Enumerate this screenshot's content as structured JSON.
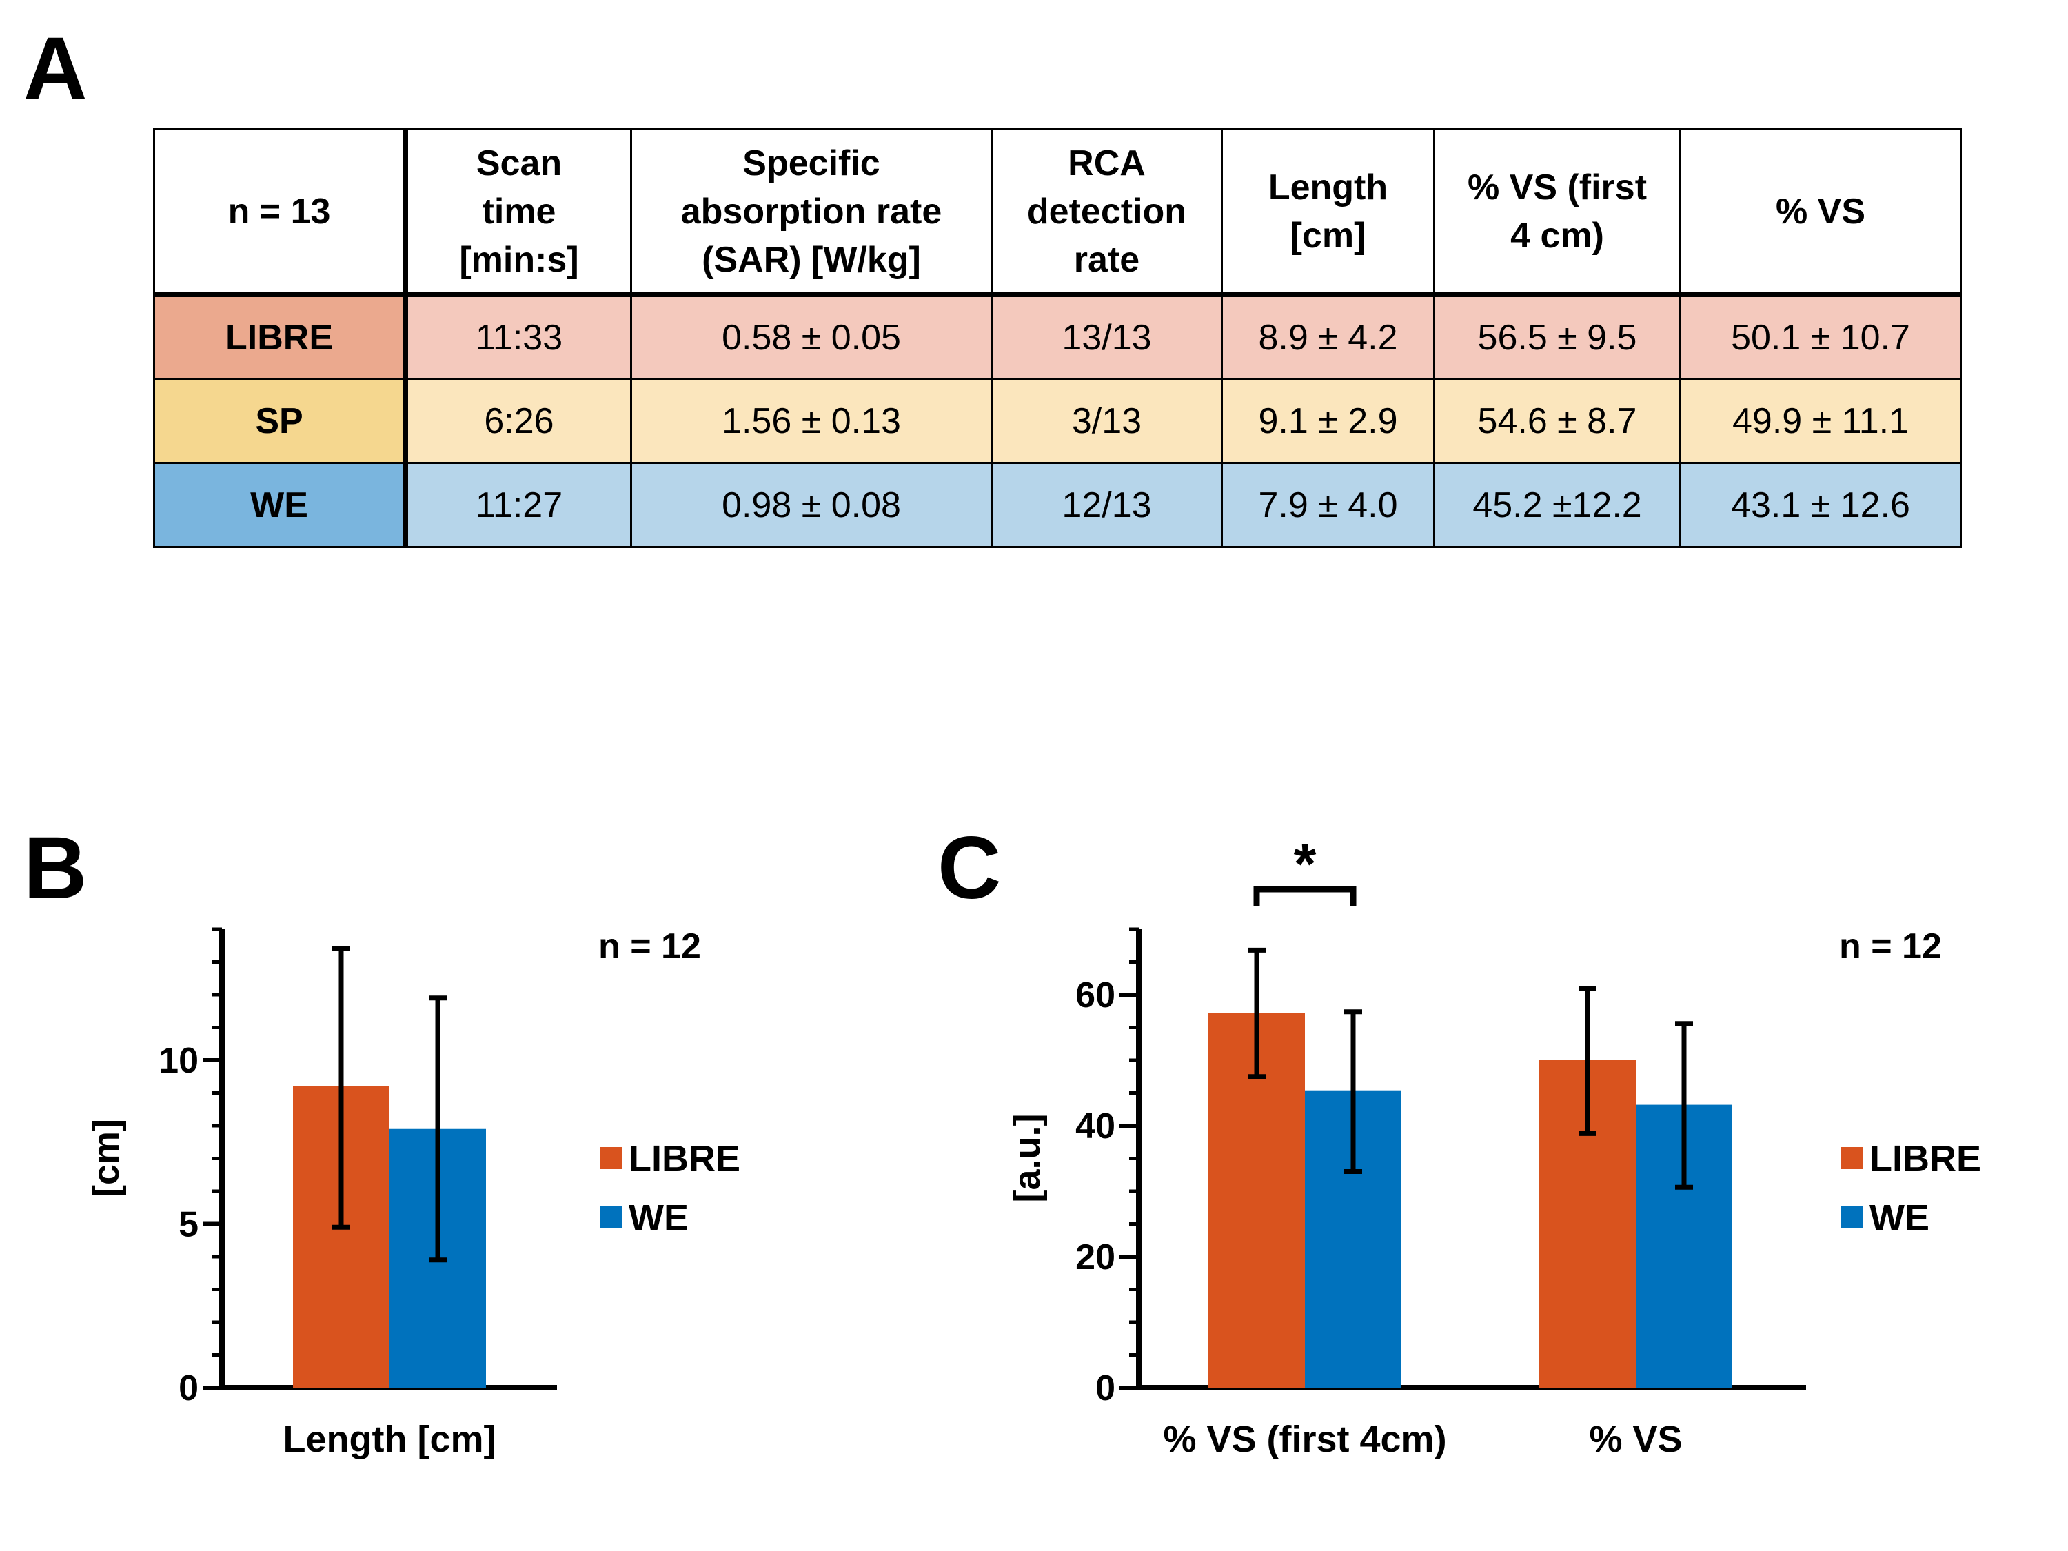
{
  "panels": {
    "a": "A",
    "b": "B",
    "c": "C"
  },
  "table": {
    "headers": [
      [
        "n = 13"
      ],
      [
        "Scan",
        "time",
        "[min:s]"
      ],
      [
        "Specific",
        "absorption rate",
        "(SAR) [W/kg]"
      ],
      [
        "RCA",
        "detection",
        "rate"
      ],
      [
        "Length",
        "[cm]"
      ],
      [
        "% VS (first",
        "4 cm)"
      ],
      [
        "% VS"
      ]
    ],
    "rows": [
      {
        "name": "LIBRE",
        "cells": [
          "11:33",
          "0.58 ± 0.05",
          "13/13",
          "8.9 ± 4.2",
          "56.5 ± 9.5",
          "50.1 ± 10.7"
        ]
      },
      {
        "name": "SP",
        "cells": [
          "6:26",
          "1.56 ± 0.13",
          "3/13",
          "9.1 ± 2.9",
          "54.6 ± 8.7",
          "49.9 ± 11.1"
        ]
      },
      {
        "name": "WE",
        "cells": [
          "11:27",
          "0.98 ± 0.08",
          "12/13",
          "7.9 ± 4.0",
          "45.2 ±12.2",
          "43.1 ± 12.6"
        ]
      }
    ],
    "colors": {
      "libre_row": "#f4c9bd",
      "libre_head": "#eba98e",
      "sp_row": "#fbe6bd",
      "sp_head": "#f5d78f",
      "we_row": "#b6d5ea",
      "we_head": "#7ab5de"
    }
  },
  "chart_data": [
    {
      "id": "B",
      "type": "bar",
      "categories": [
        "Length [cm]"
      ],
      "series": [
        {
          "name": "LIBRE",
          "color": "#d9531e",
          "values": [
            9.2
          ],
          "err_low": [
            4.9
          ],
          "err_high": [
            13.4
          ]
        },
        {
          "name": "WE",
          "color": "#0072bd",
          "values": [
            7.9
          ],
          "err_low": [
            3.9
          ],
          "err_high": [
            11.9
          ]
        }
      ],
      "ylabel": "[cm]",
      "ylim": [
        0,
        14
      ],
      "yticks": [
        0,
        5,
        10
      ],
      "legend": "right",
      "annotation": "n = 12"
    },
    {
      "id": "C",
      "type": "bar",
      "categories": [
        "% VS (first 4cm)",
        "% VS"
      ],
      "series": [
        {
          "name": "LIBRE",
          "color": "#d9531e",
          "values": [
            57.2,
            50.0
          ],
          "err_low": [
            47.5,
            38.8
          ],
          "err_high": [
            66.8,
            61.0
          ]
        },
        {
          "name": "WE",
          "color": "#0072bd",
          "values": [
            45.4,
            43.2
          ],
          "err_low": [
            33.0,
            30.6
          ],
          "err_high": [
            57.4,
            55.6
          ]
        }
      ],
      "ylabel": "[a.u.]",
      "ylim": [
        0,
        70
      ],
      "yticks": [
        0,
        20,
        40,
        60
      ],
      "legend": "right",
      "annotation": "n = 12",
      "significance": "*"
    }
  ]
}
